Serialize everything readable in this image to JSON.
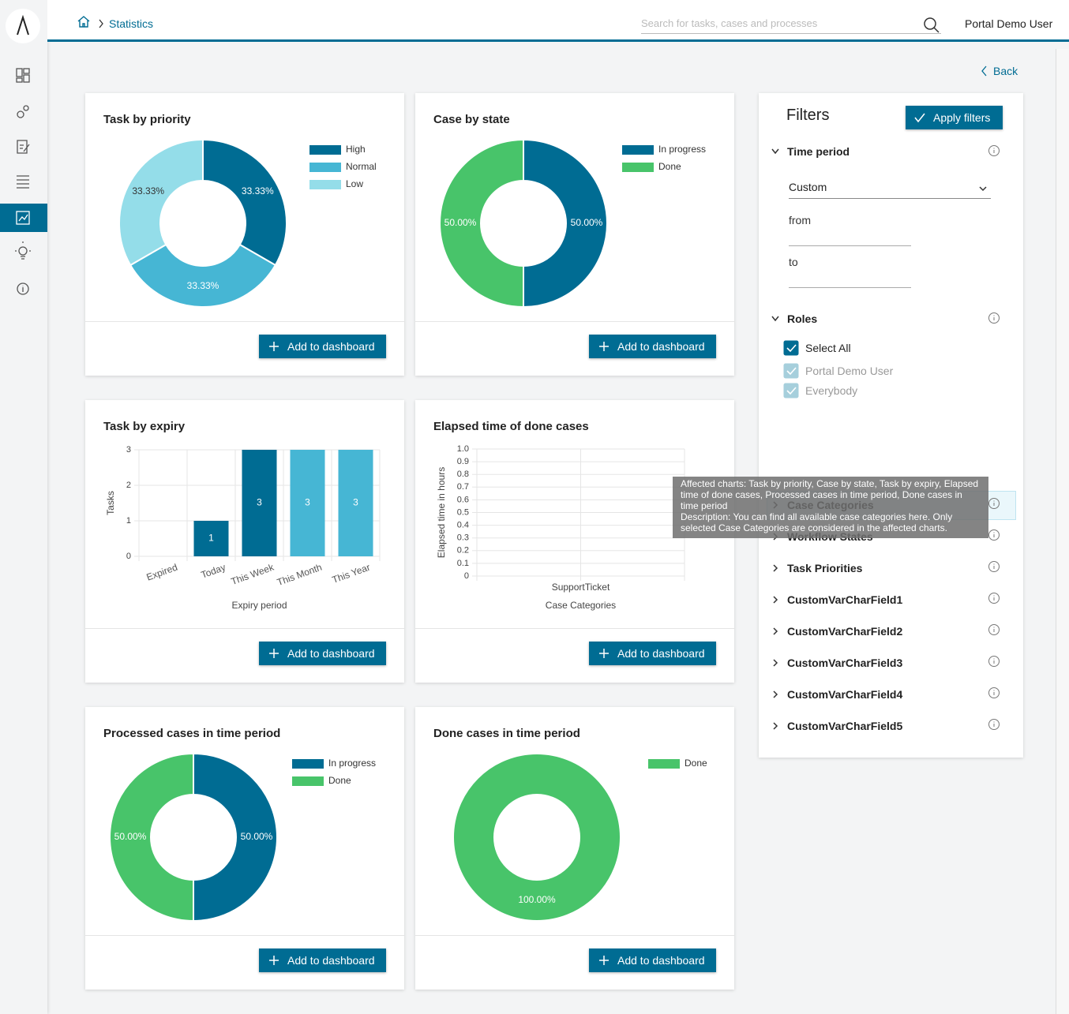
{
  "header": {
    "breadcrumb": "Statistics",
    "search_placeholder": "Search for tasks, cases and processes",
    "user": "Portal Demo User"
  },
  "back": "Back",
  "add_to_dashboard": "Add to dashboard",
  "chart_data": [
    {
      "type": "pie",
      "title": "Task by priority",
      "categories": [
        "High",
        "Normal",
        "Low"
      ],
      "values": [
        33.33,
        33.33,
        33.33
      ],
      "value_labels": [
        "33.33%",
        "33.33%",
        "33.33%"
      ],
      "colors": [
        "#006c93",
        "#46b6d4",
        "#94dde9"
      ]
    },
    {
      "type": "pie",
      "title": "Case by state",
      "categories": [
        "In progress",
        "Done"
      ],
      "values": [
        50,
        50
      ],
      "value_labels": [
        "50.00%",
        "50.00%"
      ],
      "colors": [
        "#006c93",
        "#48c46a"
      ]
    },
    {
      "type": "bar",
      "title": "Task by expiry",
      "categories": [
        "Expired",
        "Today",
        "This Week",
        "This Month",
        "This Year"
      ],
      "values": [
        0,
        1,
        3,
        3,
        3
      ],
      "colors": [
        "#006c93",
        "#006c93",
        "#006c93",
        "#46b6d4",
        "#46b6d4"
      ],
      "ylim": [
        0,
        3
      ],
      "yticks": [
        0,
        1,
        2,
        3
      ],
      "ylabel": "Tasks",
      "xlabel": "Expiry period",
      "grid": true
    },
    {
      "type": "bar",
      "title": "Elapsed time of done cases",
      "categories": [
        "SupportTicket"
      ],
      "values": [
        0
      ],
      "ylim": [
        0,
        1
      ],
      "yticks": [
        0,
        0.1,
        0.2,
        0.3,
        0.4,
        0.5,
        0.6,
        0.7,
        0.8,
        0.9,
        {
          "value": 1,
          "label": "1.0"
        }
      ],
      "ylabel": "Elapsed time in hours",
      "xlabel": "Case Categories",
      "grid": true
    },
    {
      "type": "pie",
      "title": "Processed cases in time period",
      "categories": [
        "In progress",
        "Done"
      ],
      "values": [
        50,
        50
      ],
      "value_labels": [
        "50.00%",
        "50.00%"
      ],
      "colors": [
        "#006c93",
        "#48c46a"
      ]
    },
    {
      "type": "pie",
      "title": "Done cases in time period",
      "categories": [
        "Done"
      ],
      "values": [
        100
      ],
      "value_labels": [
        "100.00%"
      ],
      "colors": [
        "#48c46a"
      ]
    }
  ],
  "filters": {
    "title": "Filters",
    "apply": "Apply filters",
    "time_period": {
      "label": "Time period",
      "selected": "Custom",
      "from": "from",
      "to": "to"
    },
    "roles": {
      "label": "Roles",
      "options": [
        {
          "label": "Select All",
          "checked": true,
          "enabled": true
        },
        {
          "label": "Portal Demo User",
          "checked": true,
          "enabled": false
        },
        {
          "label": "Everybody",
          "checked": true,
          "enabled": false
        }
      ]
    },
    "sections": [
      "Case Categories",
      "Workflow States",
      "Task Priorities",
      "CustomVarCharField1",
      "CustomVarCharField2",
      "CustomVarCharField3",
      "CustomVarCharField4",
      "CustomVarCharField5"
    ]
  },
  "tooltip": {
    "affected": "Affected charts: Task by priority, Case by state, Task by expiry, Elapsed time of done cases, Processed cases in time period, Done cases in time period",
    "description": "Description: You can find all available case categories here. Only selected Case Categories are considered in the affected charts."
  }
}
